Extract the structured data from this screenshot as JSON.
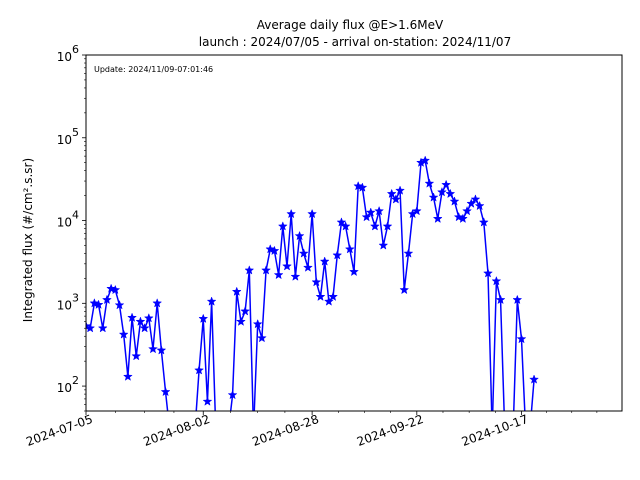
{
  "chart_data": {
    "type": "line",
    "title": "Average daily flux @E>1.6MeV",
    "subtitle": "launch : 2024/07/05 - arrival on-station: 2024/11/07",
    "ylabel": "Integrated flux (#/cm².s.sr)",
    "xlabel": "",
    "annotation": "Update: 2024/11/09-07:01:46",
    "yscale": "log",
    "ylim": [
      50,
      1000000
    ],
    "xlim": [
      "2024-07-05",
      "2024-11-10"
    ],
    "xticks": [
      "2024-07-05",
      "2024-08-02",
      "2024-08-28",
      "2024-09-22",
      "2024-10-17"
    ],
    "yticks": [
      {
        "value": 100,
        "base": "10",
        "exp": "2"
      },
      {
        "value": 1000,
        "base": "10",
        "exp": "3"
      },
      {
        "value": 10000,
        "base": "10",
        "exp": "4"
      },
      {
        "value": 100000,
        "base": "10",
        "exp": "5"
      },
      {
        "value": 1000000,
        "base": "10",
        "exp": "6"
      }
    ],
    "grid": false,
    "color": "#0000ff",
    "marker": "star",
    "series": [
      {
        "x": [
          "2024-07-05",
          "2024-07-06",
          "2024-07-07",
          "2024-07-08",
          "2024-07-09",
          "2024-07-10",
          "2024-07-11",
          "2024-07-12",
          "2024-07-13",
          "2024-07-14",
          "2024-07-15",
          "2024-07-16",
          "2024-07-17",
          "2024-07-18",
          "2024-07-19",
          "2024-07-20",
          "2024-07-21",
          "2024-07-22",
          "2024-07-23",
          "2024-07-24",
          "2024-07-25",
          "2024-07-26",
          "2024-07-27",
          "2024-07-28",
          "2024-07-29",
          "2024-07-30",
          "2024-07-31",
          "2024-08-01",
          "2024-08-02",
          "2024-08-03",
          "2024-08-04",
          "2024-08-05",
          "2024-08-06",
          "2024-08-07",
          "2024-08-08",
          "2024-08-09",
          "2024-08-10",
          "2024-08-11",
          "2024-08-12",
          "2024-08-13",
          "2024-08-14",
          "2024-08-15",
          "2024-08-16",
          "2024-08-17",
          "2024-08-18",
          "2024-08-19",
          "2024-08-20",
          "2024-08-21",
          "2024-08-22",
          "2024-08-23",
          "2024-08-24",
          "2024-08-25",
          "2024-08-26",
          "2024-08-27",
          "2024-08-28",
          "2024-08-29",
          "2024-08-30",
          "2024-08-31",
          "2024-09-01",
          "2024-09-02",
          "2024-09-03",
          "2024-09-04",
          "2024-09-05",
          "2024-09-06",
          "2024-09-07",
          "2024-09-08",
          "2024-09-09",
          "2024-09-10",
          "2024-09-11",
          "2024-09-12",
          "2024-09-13",
          "2024-09-14",
          "2024-09-15",
          "2024-09-16",
          "2024-09-17",
          "2024-09-18",
          "2024-09-19",
          "2024-09-20",
          "2024-09-21",
          "2024-09-22",
          "2024-09-23",
          "2024-09-24",
          "2024-09-25",
          "2024-09-26",
          "2024-09-27",
          "2024-09-28",
          "2024-09-29",
          "2024-09-30",
          "2024-10-01",
          "2024-10-02",
          "2024-10-03",
          "2024-10-04",
          "2024-10-05",
          "2024-10-06",
          "2024-10-07",
          "2024-10-08",
          "2024-10-09",
          "2024-10-10",
          "2024-10-11",
          "2024-10-12",
          "2024-10-13",
          "2024-10-14",
          "2024-10-15",
          "2024-10-16",
          "2024-10-17",
          "2024-10-18",
          "2024-10-19",
          "2024-10-20"
        ],
        "y": [
          530,
          500,
          1000,
          960,
          500,
          1100,
          1500,
          1450,
          950,
          420,
          130,
          670,
          230,
          600,
          500,
          660,
          280,
          1000,
          270,
          85,
          null,
          null,
          null,
          null,
          null,
          null,
          null,
          155,
          650,
          65,
          1050,
          null,
          null,
          null,
          null,
          78,
          1380,
          600,
          800,
          2500,
          null,
          560,
          380,
          2500,
          4500,
          4300,
          2200,
          8500,
          2800,
          12000,
          2100,
          6500,
          4000,
          2700,
          12000,
          1800,
          1200,
          3200,
          1050,
          1200,
          3800,
          9500,
          8500,
          4500,
          2400,
          26000,
          25000,
          11000,
          12500,
          8500,
          13000,
          5000,
          8500,
          21000,
          18000,
          23000,
          1450,
          4000,
          12000,
          13000,
          50000,
          53000,
          28000,
          19000,
          10500,
          22000,
          27000,
          21000,
          17000,
          11000,
          10500,
          13000,
          16000,
          18000,
          15000,
          9500,
          2300,
          null,
          1850,
          1100,
          null,
          null,
          null,
          1100,
          370,
          null,
          null,
          120
        ]
      }
    ]
  }
}
